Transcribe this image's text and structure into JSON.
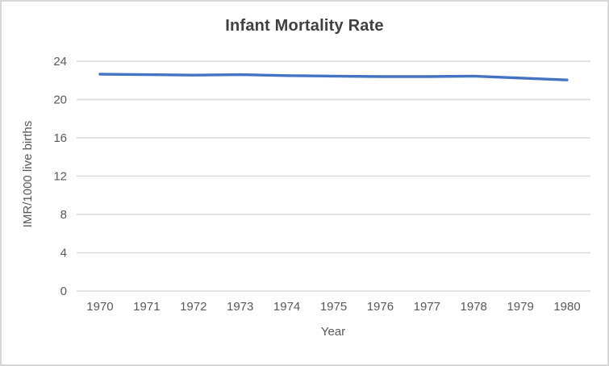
{
  "chart_data": {
    "type": "line",
    "title": "Infant Mortality Rate",
    "xlabel": "Year",
    "ylabel": "IMR/1000 live births",
    "categories": [
      "1970",
      "1971",
      "1972",
      "1973",
      "1974",
      "1975",
      "1976",
      "1977",
      "1978",
      "1979",
      "1980"
    ],
    "series": [
      {
        "name": "Infant Mortality Rate",
        "values": [
          22.65,
          22.6,
          22.55,
          22.6,
          22.5,
          22.45,
          22.4,
          22.4,
          22.45,
          22.25,
          22.05
        ]
      }
    ],
    "ylim": [
      0,
      24
    ],
    "yticks": [
      0,
      4,
      8,
      12,
      16,
      20,
      24
    ],
    "grid": "horizontal",
    "legend": "none",
    "colors": {
      "line": "#4472C4",
      "title_text": "#404040",
      "axis_text": "#595959",
      "gridline": "#d9d9d9",
      "frame_border": "#d7d7d7",
      "background": "#ffffff"
    }
  }
}
